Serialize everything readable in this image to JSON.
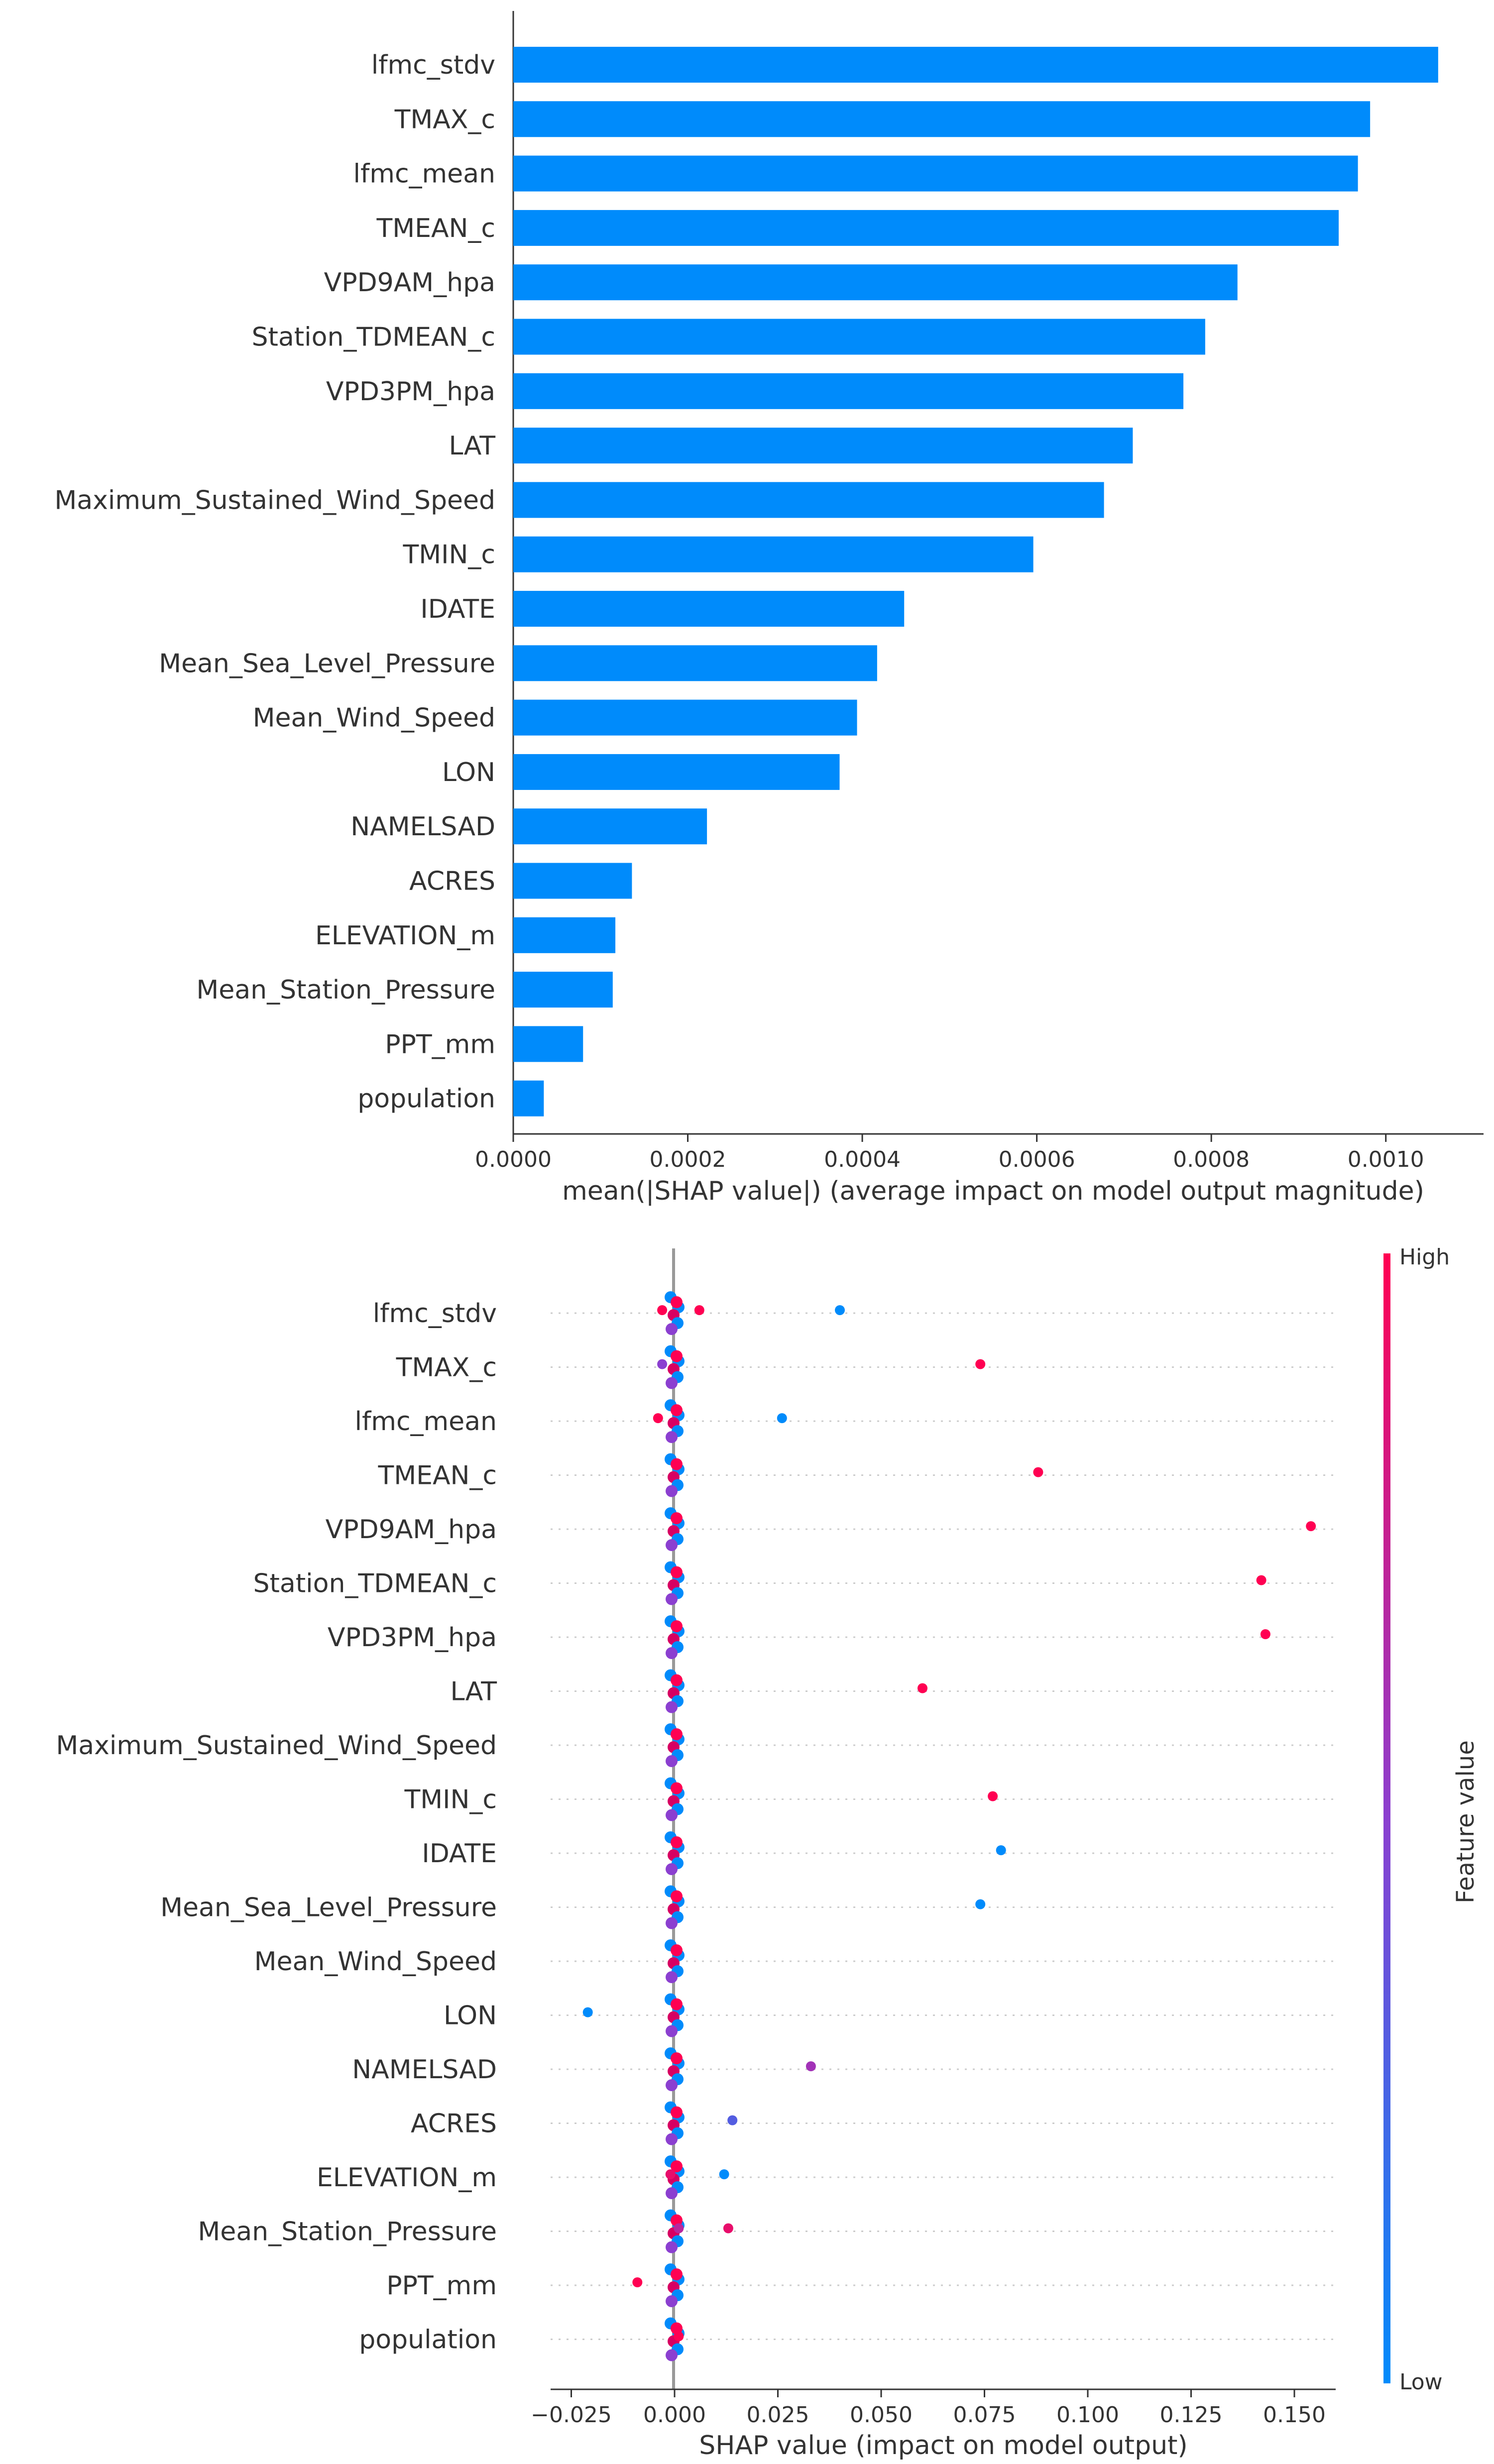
{
  "chart_data": [
    {
      "type": "bar",
      "orientation": "horizontal",
      "categories": [
        "lfmc_stdv",
        "TMAX_c",
        "lfmc_mean",
        "TMEAN_c",
        "VPD9AM_hpa",
        "Station_TDMEAN_c",
        "VPD3PM_hpa",
        "LAT",
        "Maximum_Sustained_Wind_Speed",
        "TMIN_c",
        "IDATE",
        "Mean_Sea_Level_Pressure",
        "Mean_Wind_Speed",
        "LON",
        "NAMELSAD",
        "ACRES",
        "ELEVATION_m",
        "Mean_Station_Pressure",
        "PPT_mm",
        "population"
      ],
      "values": [
        0.00106,
        0.000982,
        0.000968,
        0.000946,
        0.00083,
        0.000793,
        0.000768,
        0.00071,
        0.000677,
        0.000596,
        0.000448,
        0.000417,
        0.000394,
        0.000374,
        0.000222,
        0.000136,
        0.000117,
        0.000114,
        8e-05,
        3.5e-05
      ],
      "xlim": [
        0.0,
        0.001112
      ],
      "xticks": [
        0.0,
        0.0002,
        0.0004,
        0.0006,
        0.0008,
        0.001
      ],
      "xtick_labels": [
        "0.0000",
        "0.0002",
        "0.0004",
        "0.0006",
        "0.0008",
        "0.0010"
      ],
      "xlabel": "mean(|SHAP value|) (average impact on model output magnitude)",
      "bar_color": "#008bfb"
    },
    {
      "type": "scatter",
      "subtype": "beeswarm",
      "categories": [
        "lfmc_stdv",
        "TMAX_c",
        "lfmc_mean",
        "TMEAN_c",
        "VPD9AM_hpa",
        "Station_TDMEAN_c",
        "VPD3PM_hpa",
        "LAT",
        "Maximum_Sustained_Wind_Speed",
        "TMIN_c",
        "IDATE",
        "Mean_Sea_Level_Pressure",
        "Mean_Wind_Speed",
        "LON",
        "NAMELSAD",
        "ACRES",
        "ELEVATION_m",
        "Mean_Station_Pressure",
        "PPT_mm",
        "population"
      ],
      "xlim": [
        -0.03,
        0.16
      ],
      "xticks": [
        -0.025,
        0.0,
        0.025,
        0.05,
        0.075,
        0.1,
        0.125,
        0.15
      ],
      "xtick_labels": [
        "−0.025",
        "0.000",
        "0.025",
        "0.050",
        "0.075",
        "0.100",
        "0.125",
        "0.150"
      ],
      "xlabel": "SHAP value (impact on model output)",
      "colorbar": {
        "label": "Feature value",
        "high": "High",
        "low": "Low",
        "low_color": "#008bfb",
        "high_color": "#ff0052"
      },
      "points": [
        {
          "feature": 0,
          "shap": 0.04,
          "value": 0.0
        },
        {
          "feature": 0,
          "shap": 0.006,
          "value": 1.0
        },
        {
          "feature": 0,
          "shap": -0.003,
          "value": 1.0
        },
        {
          "feature": 1,
          "shap": 0.074,
          "value": 1.0
        },
        {
          "feature": 1,
          "shap": -0.003,
          "value": 0.5
        },
        {
          "feature": 2,
          "shap": 0.026,
          "value": 0.0
        },
        {
          "feature": 2,
          "shap": -0.004,
          "value": 1.0
        },
        {
          "feature": 3,
          "shap": 0.088,
          "value": 1.0
        },
        {
          "feature": 4,
          "shap": 0.154,
          "value": 1.0
        },
        {
          "feature": 5,
          "shap": 0.142,
          "value": 1.0
        },
        {
          "feature": 6,
          "shap": 0.143,
          "value": 1.0
        },
        {
          "feature": 7,
          "shap": 0.06,
          "value": 1.0
        },
        {
          "feature": 9,
          "shap": 0.077,
          "value": 1.0
        },
        {
          "feature": 10,
          "shap": 0.079,
          "value": 0.0
        },
        {
          "feature": 11,
          "shap": 0.074,
          "value": 0.0
        },
        {
          "feature": 13,
          "shap": -0.021,
          "value": 0.0
        },
        {
          "feature": 14,
          "shap": 0.033,
          "value": 0.6
        },
        {
          "feature": 15,
          "shap": 0.014,
          "value": 0.3
        },
        {
          "feature": 16,
          "shap": 0.012,
          "value": 0.0
        },
        {
          "feature": 16,
          "shap": -0.001,
          "value": 0.9
        },
        {
          "feature": 17,
          "shap": 0.013,
          "value": 0.9
        },
        {
          "feature": 17,
          "shap": 0.001,
          "value": 0.7
        },
        {
          "feature": 18,
          "shap": -0.009,
          "value": 1.0
        },
        {
          "feature": 19,
          "shap": 0.001,
          "value": 1.0
        }
      ]
    }
  ]
}
